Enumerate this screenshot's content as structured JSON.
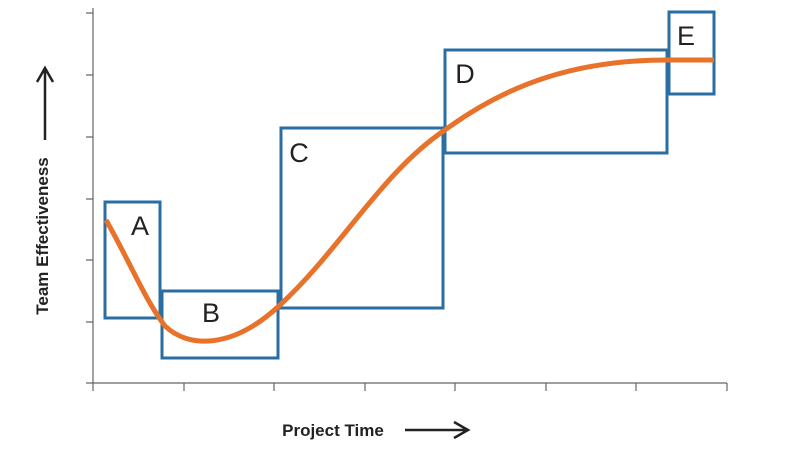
{
  "axes": {
    "x_label": "Project Time",
    "y_label": "Team Effectiveness"
  },
  "stages": [
    {
      "label": "A"
    },
    {
      "label": "B"
    },
    {
      "label": "C"
    },
    {
      "label": "D"
    },
    {
      "label": "E"
    }
  ]
}
